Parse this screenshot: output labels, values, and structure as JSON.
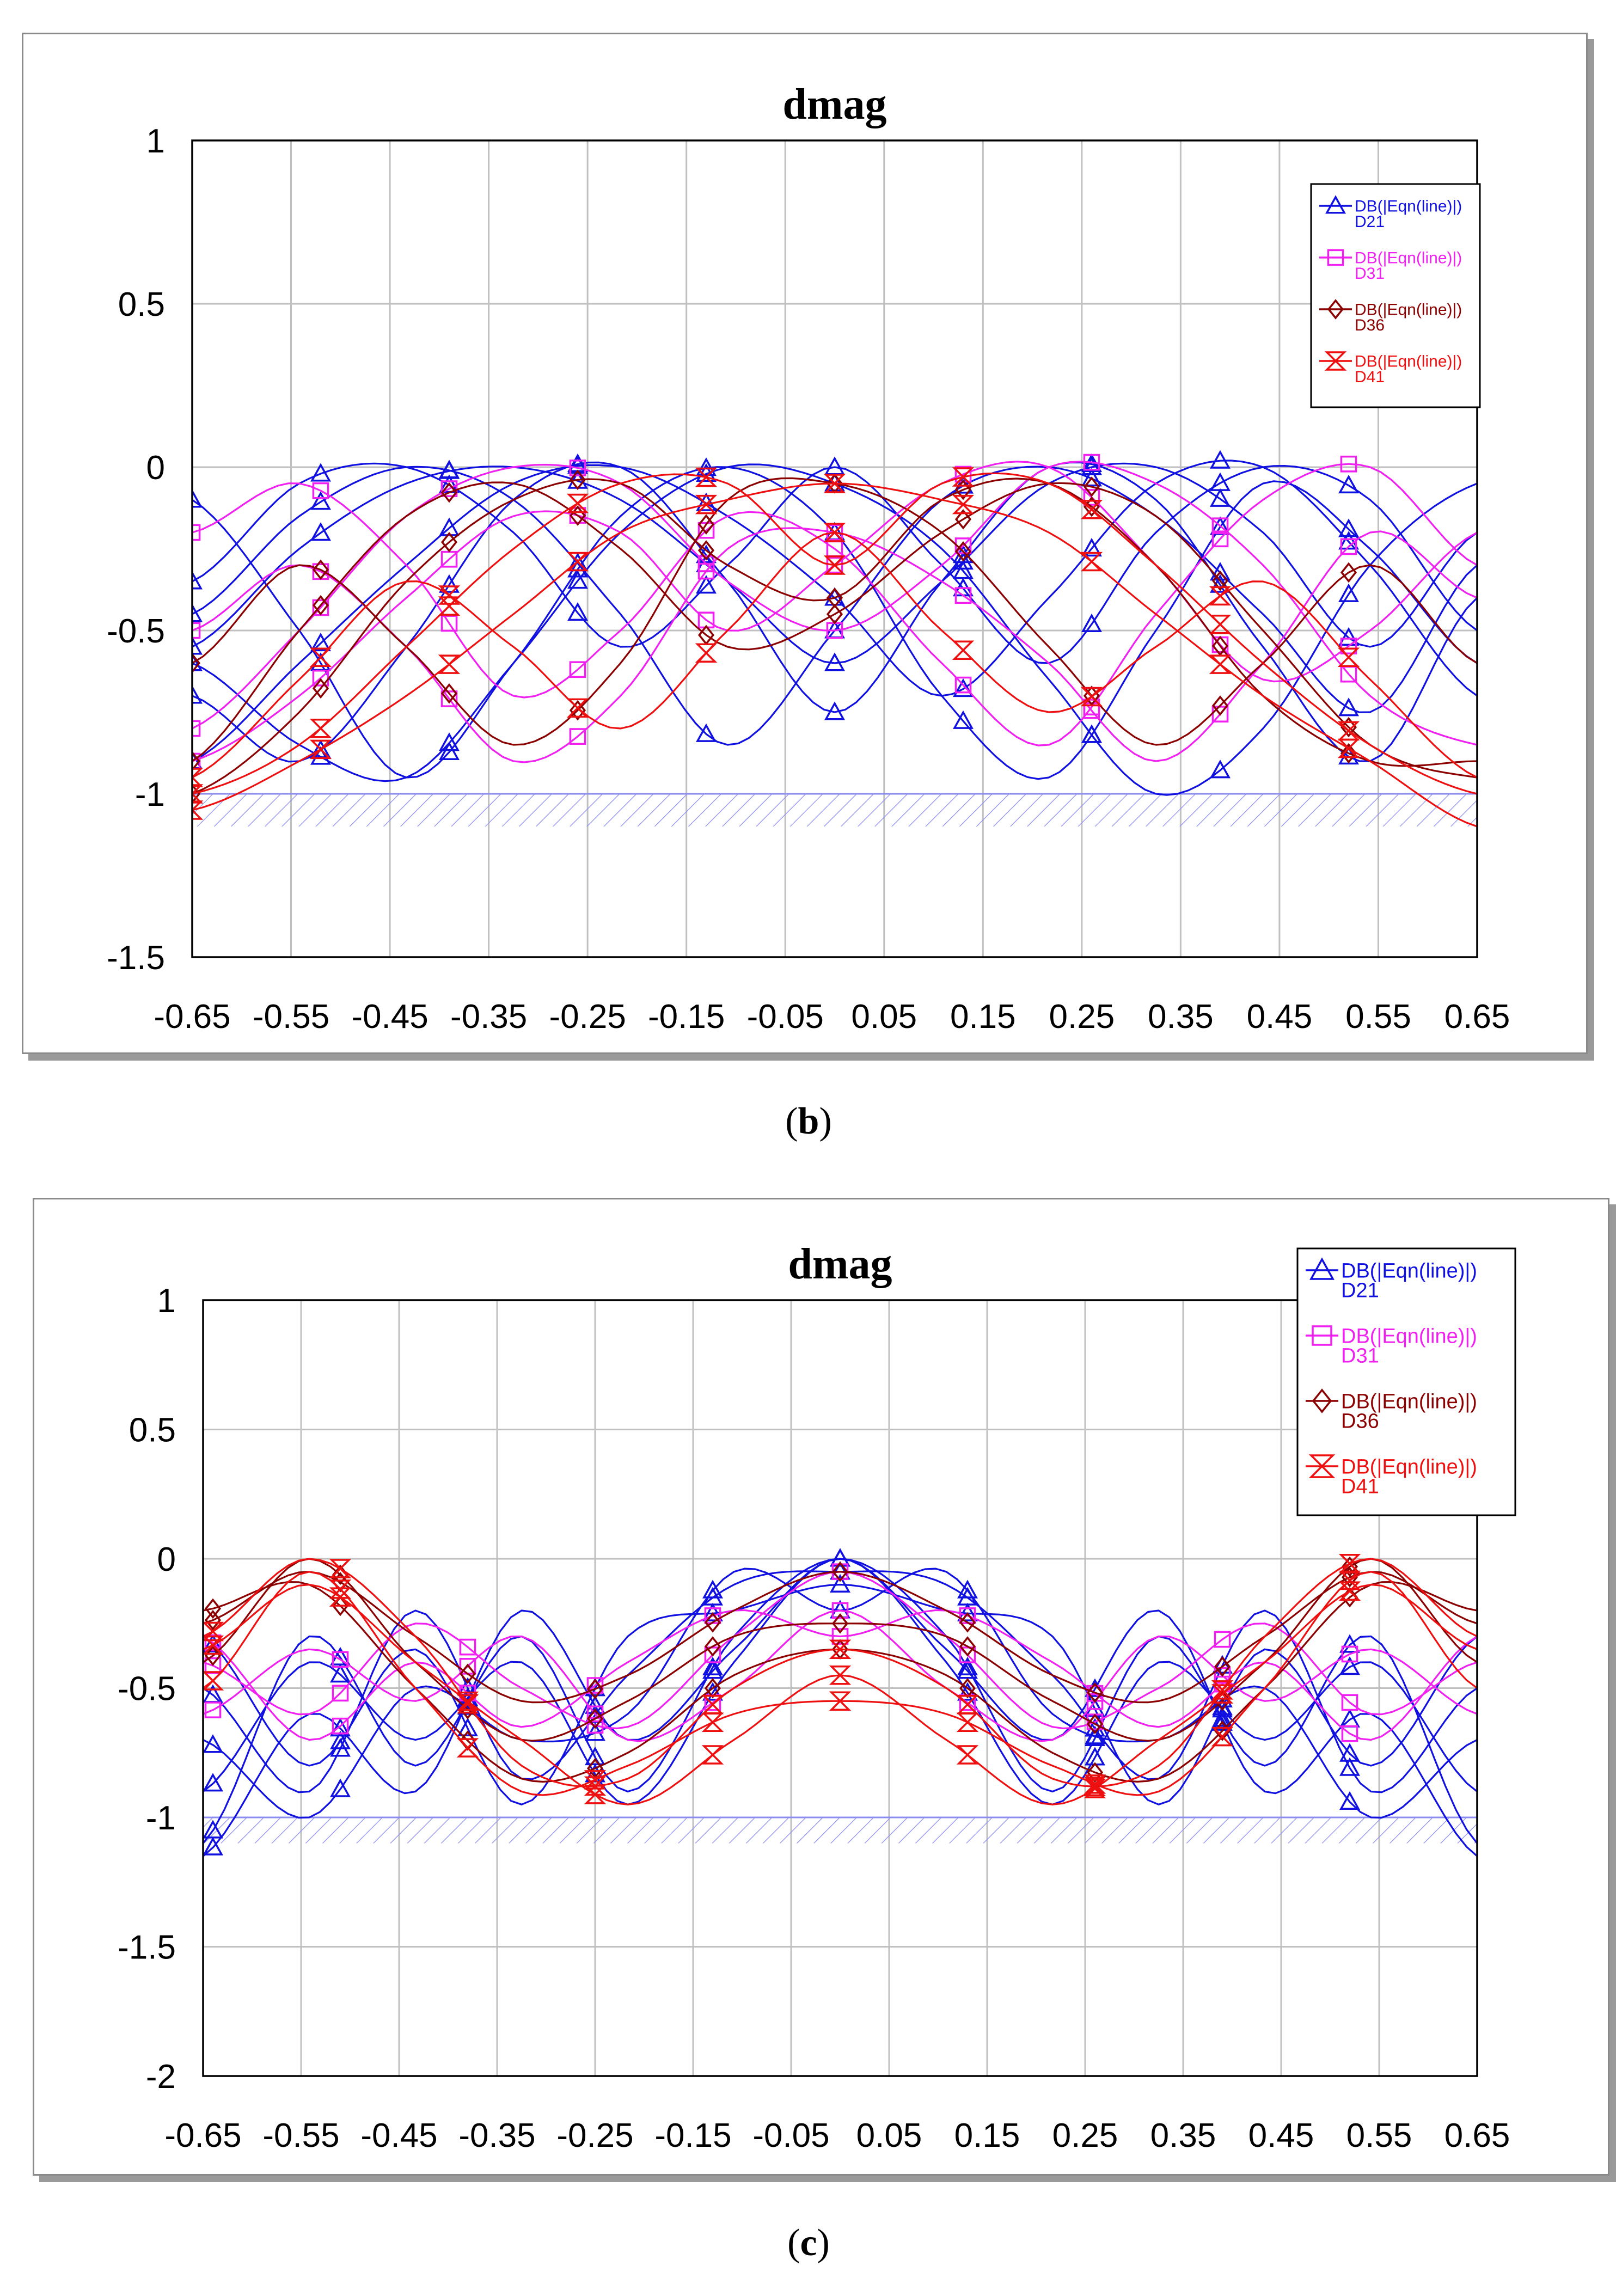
{
  "captions": {
    "b": "b",
    "c": "c"
  },
  "chart_data": [
    {
      "type": "line",
      "id": "b",
      "title": "dmag",
      "xlabel": "",
      "ylabel": "",
      "xlim": [
        -0.65,
        0.65
      ],
      "ylim": [
        -1.5,
        1
      ],
      "xticks": [
        -0.65,
        -0.55,
        -0.45,
        -0.35,
        -0.25,
        -0.15,
        -0.05,
        0.05,
        0.15,
        0.25,
        0.35,
        0.45,
        0.55,
        0.65
      ],
      "xtick_labels": [
        "-0.65",
        "-0.55",
        "-0.45",
        "-0.35",
        "-0.25",
        "-0.15",
        "-0.05",
        "0.05",
        "0.15",
        "0.25",
        "0.35",
        "0.45",
        "0.55",
        "0.65"
      ],
      "yticks": [
        1,
        0.5,
        0,
        -0.5,
        -1,
        -1.5
      ],
      "ytick_labels": [
        "1",
        "0.5",
        "0",
        "-0.5",
        "-1",
        "-1.5"
      ],
      "grid": true,
      "limit_line": {
        "y": -1,
        "hatch_to": -1.1
      },
      "legend_position": "top-right",
      "marker_x": [
        -0.65,
        -0.52,
        -0.39,
        -0.26,
        -0.13,
        0.0,
        0.13,
        0.26,
        0.39,
        0.52
      ],
      "series": [
        {
          "name": "DB(|Eqn(line)|)",
          "sub": "D21",
          "color": "#1010e0",
          "marker": "triangle",
          "samples": [
            [
              -0.55,
              -0.25,
              -0.05,
              0,
              -0.1,
              -0.35,
              -0.6,
              -0.35,
              -0.05,
              0,
              -0.2,
              -0.55,
              -0.2
            ],
            [
              -0.35,
              -0.05,
              0,
              -0.2,
              -0.55,
              -0.3,
              0,
              -0.3,
              -0.6,
              -0.2,
              0,
              -0.1,
              -0.5
            ],
            [
              -0.9,
              -0.6,
              -0.3,
              -0.05,
              0,
              -0.15,
              -0.4,
              -0.7,
              -0.4,
              -0.05,
              0,
              -0.3,
              -0.7
            ],
            [
              -0.1,
              -0.5,
              -0.95,
              -0.6,
              -0.15,
              0,
              -0.2,
              -0.7,
              -0.95,
              -0.5,
              -0.05,
              -0.25,
              -0.6
            ],
            [
              -0.7,
              -0.9,
              -0.55,
              -0.1,
              0,
              -0.35,
              -0.75,
              -0.35,
              0,
              -0.1,
              -0.55,
              -0.9,
              -0.4
            ],
            [
              -0.45,
              -0.15,
              0,
              -0.1,
              -0.45,
              -0.85,
              -0.5,
              -0.1,
              0,
              -0.15,
              -0.45,
              -0.75,
              -0.3
            ],
            [
              -0.6,
              -0.85,
              -0.95,
              -0.6,
              -0.2,
              0,
              -0.05,
              -0.25,
              -0.65,
              -1.0,
              -0.8,
              -0.3,
              -0.05
            ]
          ]
        },
        {
          "name": "DB(|Eqn(line)|)",
          "sub": "D31",
          "color": "#f020f0",
          "marker": "square",
          "samples": [
            [
              -0.8,
              -0.5,
              -0.15,
              0,
              -0.05,
              -0.35,
              -0.5,
              -0.3,
              0,
              -0.05,
              -0.3,
              -0.7,
              -0.85
            ],
            [
              -0.2,
              -0.05,
              -0.3,
              -0.7,
              -0.5,
              -0.15,
              -0.25,
              -0.6,
              -0.85,
              -0.45,
              -0.1,
              0,
              -0.3
            ],
            [
              -0.9,
              -0.7,
              -0.4,
              -0.15,
              -0.2,
              -0.5,
              -0.3,
              -0.05,
              0,
              -0.3,
              -0.65,
              -0.5,
              -0.2
            ],
            [
              -0.5,
              -0.3,
              -0.55,
              -0.9,
              -0.7,
              -0.25,
              -0.2,
              -0.35,
              -0.6,
              -0.9,
              -0.6,
              -0.2,
              -0.4
            ]
          ]
        },
        {
          "name": "DB(|Eqn(line)|)",
          "sub": "D36",
          "color": "#8b0000",
          "marker": "diamond",
          "samples": [
            [
              -0.9,
              -0.5,
              -0.15,
              -0.05,
              -0.25,
              -0.55,
              -0.45,
              -0.2,
              -0.05,
              -0.15,
              -0.5,
              -0.85,
              -0.95
            ],
            [
              -1.0,
              -0.75,
              -0.35,
              -0.1,
              -0.05,
              -0.3,
              -0.4,
              -0.1,
              -0.05,
              -0.3,
              -0.7,
              -0.9,
              -0.9
            ],
            [
              -0.6,
              -0.3,
              -0.55,
              -0.85,
              -0.6,
              -0.1,
              -0.05,
              -0.2,
              -0.55,
              -0.85,
              -0.6,
              -0.3,
              -0.6
            ]
          ]
        },
        {
          "name": "DB(|Eqn(line)|)",
          "sub": "D41",
          "color": "#ee1010",
          "marker": "hourglass",
          "samples": [
            [
              -1.0,
              -0.85,
              -0.55,
              -0.25,
              -0.05,
              -0.05,
              -0.3,
              -0.05,
              -0.05,
              -0.3,
              -0.6,
              -0.85,
              -1.0
            ],
            [
              -0.95,
              -0.65,
              -0.35,
              -0.55,
              -0.8,
              -0.5,
              -0.2,
              -0.5,
              -0.75,
              -0.55,
              -0.35,
              -0.65,
              -0.95
            ],
            [
              -1.05,
              -0.9,
              -0.7,
              -0.45,
              -0.2,
              -0.1,
              -0.05,
              -0.1,
              -0.2,
              -0.45,
              -0.7,
              -0.9,
              -1.1
            ]
          ]
        }
      ]
    },
    {
      "type": "line",
      "id": "c",
      "title": "dmag",
      "xlabel": "",
      "ylabel": "",
      "xlim": [
        -0.65,
        0.65
      ],
      "ylim": [
        -2,
        1
      ],
      "xticks": [
        -0.65,
        -0.55,
        -0.45,
        -0.35,
        -0.25,
        -0.15,
        -0.05,
        0.05,
        0.15,
        0.25,
        0.35,
        0.45,
        0.55,
        0.65
      ],
      "xtick_labels": [
        "-0.65",
        "-0.55",
        "-0.45",
        "-0.35",
        "-0.25",
        "-0.15",
        "-0.05",
        "0.05",
        "0.15",
        "0.25",
        "0.35",
        "0.45",
        "0.55",
        "0.65"
      ],
      "yticks": [
        1,
        0.5,
        0,
        -0.5,
        -1,
        -1.5,
        -2
      ],
      "ytick_labels": [
        "1",
        "0.5",
        "0",
        "-0.5",
        "-1",
        "-1.5",
        "-2"
      ],
      "grid": true,
      "limit_line": {
        "y": -1,
        "hatch_to": -1.1
      },
      "legend_position": "top-right",
      "marker_x": [
        -0.64,
        -0.51,
        -0.38,
        -0.25,
        -0.13,
        0.0,
        0.13,
        0.26,
        0.39,
        0.52
      ],
      "series": [
        {
          "name": "DB(|Eqn(line)|)",
          "sub": "D21",
          "color": "#1010e0",
          "marker": "triangle",
          "samples": [
            [
              -1.1,
              -0.3,
              -0.8,
              -0.3,
              -0.9,
              -0.3,
              0,
              -0.3,
              -0.9,
              -0.3,
              -0.8,
              -0.3,
              -1.1
            ],
            [
              -0.5,
              -0.9,
              -0.2,
              -0.85,
              -0.45,
              -0.1,
              -0.05,
              -0.1,
              -0.45,
              -0.85,
              -0.2,
              -0.9,
              -0.5
            ],
            [
              -0.9,
              -0.4,
              -0.7,
              -0.4,
              -0.95,
              -0.4,
              0,
              -0.4,
              -0.95,
              -0.4,
              -0.7,
              -0.4,
              -0.9
            ],
            [
              -0.3,
              -0.8,
              -0.35,
              -0.95,
              -0.3,
              -0.2,
              -0.1,
              -0.2,
              -0.3,
              -0.95,
              -0.35,
              -0.8,
              -0.3
            ],
            [
              -1.15,
              -0.6,
              -0.9,
              -0.2,
              -0.7,
              -0.35,
              0,
              -0.35,
              -0.7,
              -0.2,
              -0.9,
              -0.6,
              -1.15
            ],
            [
              -0.7,
              -1.0,
              -0.5,
              -0.7,
              -0.6,
              -0.05,
              -0.2,
              -0.05,
              -0.6,
              -0.7,
              -0.5,
              -1.0,
              -0.7
            ]
          ]
        },
        {
          "name": "DB(|Eqn(line)|)",
          "sub": "D31",
          "color": "#f020f0",
          "marker": "square",
          "samples": [
            [
              -0.4,
              -0.6,
              -0.25,
              -0.5,
              -0.65,
              -0.3,
              -0.05,
              -0.3,
              -0.65,
              -0.5,
              -0.25,
              -0.6,
              -0.4
            ],
            [
              -0.6,
              -0.35,
              -0.55,
              -0.3,
              -0.7,
              -0.5,
              -0.2,
              -0.5,
              -0.7,
              -0.3,
              -0.55,
              -0.35,
              -0.6
            ],
            [
              -0.3,
              -0.7,
              -0.4,
              -0.65,
              -0.4,
              -0.2,
              -0.3,
              -0.2,
              -0.4,
              -0.65,
              -0.4,
              -0.7,
              -0.3
            ]
          ]
        },
        {
          "name": "DB(|Eqn(line)|)",
          "sub": "D36",
          "color": "#8b0000",
          "marker": "diamond",
          "samples": [
            [
              -0.25,
              -0.05,
              -0.3,
              -0.55,
              -0.45,
              -0.2,
              -0.05,
              -0.2,
              -0.45,
              -0.55,
              -0.3,
              -0.05,
              -0.25
            ],
            [
              -0.4,
              0,
              -0.4,
              -0.7,
              -0.55,
              -0.3,
              -0.25,
              -0.3,
              -0.55,
              -0.7,
              -0.4,
              0,
              -0.4
            ],
            [
              -0.2,
              -0.1,
              -0.5,
              -0.85,
              -0.75,
              -0.45,
              -0.35,
              -0.45,
              -0.75,
              -0.85,
              -0.5,
              -0.1,
              -0.2
            ]
          ]
        },
        {
          "name": "DB(|Eqn(line)|)",
          "sub": "D41",
          "color": "#ee1010",
          "marker": "hourglass",
          "samples": [
            [
              -0.3,
              0,
              -0.3,
              -0.8,
              -0.85,
              -0.5,
              -0.35,
              -0.5,
              -0.85,
              -0.8,
              -0.3,
              0,
              -0.3
            ],
            [
              -0.5,
              -0.05,
              -0.5,
              -0.9,
              -0.8,
              -0.6,
              -0.55,
              -0.6,
              -0.8,
              -0.9,
              -0.5,
              -0.05,
              -0.5
            ],
            [
              -0.35,
              -0.1,
              -0.4,
              -0.7,
              -0.95,
              -0.7,
              -0.45,
              -0.7,
              -0.95,
              -0.7,
              -0.4,
              -0.1,
              -0.35
            ]
          ]
        }
      ]
    }
  ]
}
